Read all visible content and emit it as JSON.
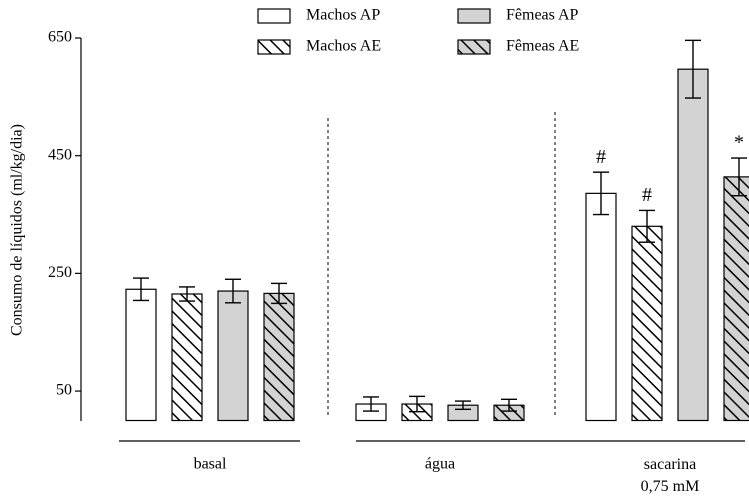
{
  "chart_data": {
    "type": "bar",
    "y_label": "Consumo de líquidos (ml/kg/dia)",
    "categories": [
      "basal",
      "água",
      "sacarina\n0,75 mM"
    ],
    "series": [
      {
        "name": "Machos AP",
        "color": "#ffffff",
        "hatch": false,
        "values": [
          223,
          28,
          386
        ],
        "errors": [
          19,
          12,
          36
        ],
        "markers": [
          null,
          null,
          "#"
        ]
      },
      {
        "name": "Machos AE",
        "color": "#ffffff",
        "hatch": true,
        "values": [
          215,
          28,
          330
        ],
        "errors": [
          12,
          13,
          27
        ],
        "markers": [
          null,
          null,
          "#"
        ]
      },
      {
        "name": "Fêmeas AP",
        "color": "#d3d3d3",
        "hatch": false,
        "values": [
          220,
          26,
          597
        ],
        "errors": [
          20,
          7,
          49
        ],
        "markers": [
          null,
          null,
          null
        ]
      },
      {
        "name": "Fêmeas AE",
        "color": "#d3d3d3",
        "hatch": true,
        "values": [
          216,
          26,
          414
        ],
        "errors": [
          17,
          10,
          32
        ],
        "markers": [
          null,
          null,
          "*"
        ]
      }
    ],
    "ylim": [
      0,
      650
    ],
    "yticks": [
      50,
      250,
      450,
      650
    ]
  }
}
